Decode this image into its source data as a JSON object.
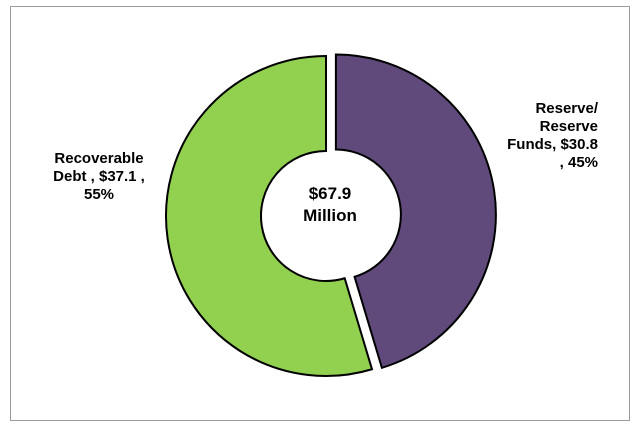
{
  "chart_data": {
    "type": "pie",
    "donut": true,
    "title": "",
    "center_label": {
      "line1": "$67.9",
      "line2": "Million"
    },
    "legend": "none",
    "series": [
      {
        "label": "Reserve/ Reserve Funds",
        "value": 30.8,
        "percent": 45,
        "color": "#604a7b",
        "exploded": true,
        "data_label": "Reserve/\nReserve\nFunds,  $30.8\n, 45%"
      },
      {
        "label": "Recoverable Debt",
        "value": 37.1,
        "percent": 55,
        "color": "#92d050",
        "exploded": false,
        "data_label": "Recoverable\nDebt ,  $37.1 ,\n55%"
      }
    ]
  }
}
